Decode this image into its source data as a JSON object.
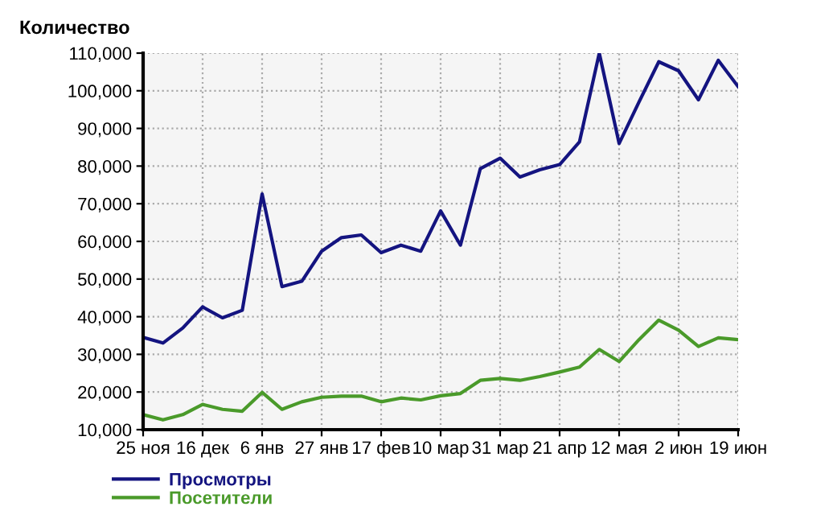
{
  "chart_data": {
    "type": "line",
    "title": "Количество",
    "categories": [
      "25 ноя",
      null,
      null,
      "16 дек",
      null,
      null,
      "6 янв",
      null,
      null,
      "27 янв",
      null,
      null,
      "17 фев",
      null,
      null,
      "10 мар",
      null,
      null,
      "31 мар",
      null,
      null,
      "21 апр",
      null,
      null,
      "12 мая",
      null,
      null,
      "2 июн",
      null,
      null,
      "19 июн"
    ],
    "series": [
      {
        "name": "Просмотры",
        "color": "#141480",
        "values": [
          34500,
          33000,
          37000,
          42600,
          39700,
          41700,
          72600,
          48000,
          49400,
          57400,
          61000,
          61700,
          57000,
          59000,
          57400,
          68100,
          59000,
          79300,
          82100,
          77100,
          79000,
          80400,
          86400,
          110000,
          86000,
          97000,
          107700,
          105300,
          97600,
          108100,
          101100
        ]
      },
      {
        "name": "Посетители",
        "color": "#4a9a2a",
        "values": [
          14000,
          12600,
          14000,
          16700,
          15400,
          14900,
          19900,
          15400,
          17400,
          18600,
          18900,
          18900,
          17400,
          18400,
          17900,
          19000,
          19600,
          23100,
          23600,
          23100,
          24100,
          25300,
          26600,
          31300,
          28100,
          33900,
          39100,
          36400,
          32100,
          34400,
          33900
        ]
      }
    ],
    "ylim": [
      10000,
      110000
    ],
    "yticks": [
      {
        "value": 10000,
        "label": "10,000"
      },
      {
        "value": 20000,
        "label": "20,000"
      },
      {
        "value": 30000,
        "label": "30,000"
      },
      {
        "value": 40000,
        "label": "40,000"
      },
      {
        "value": 50000,
        "label": "50,000"
      },
      {
        "value": 60000,
        "label": "60,000"
      },
      {
        "value": 70000,
        "label": "70,000"
      },
      {
        "value": 80000,
        "label": "80,000"
      },
      {
        "value": 90000,
        "label": "90,000"
      },
      {
        "value": 100000,
        "label": "100,000"
      },
      {
        "value": 110000,
        "label": "110,000"
      }
    ],
    "grid": true,
    "legend": "bottom left",
    "line_style": "solid",
    "marker": "none"
  }
}
